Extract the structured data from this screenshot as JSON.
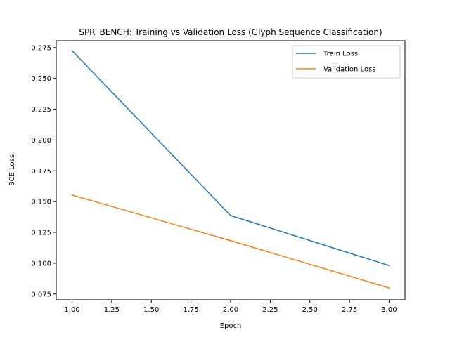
{
  "chart_data": {
    "type": "line",
    "title": "SPR_BENCH: Training vs Validation Loss (Glyph Sequence Classification)",
    "xlabel": "Epoch",
    "ylabel": "BCE Loss",
    "x": [
      1.0,
      2.0,
      3.0
    ],
    "series": [
      {
        "name": "Train Loss",
        "color": "#1f77b4",
        "values": [
          0.2725,
          0.1387,
          0.0981
        ]
      },
      {
        "name": "Validation Loss",
        "color": "#ff7f0e",
        "values": [
          0.1553,
          0.1183,
          0.0799
        ]
      }
    ],
    "xlim": [
      0.9,
      3.1
    ],
    "ylim": [
      0.0703,
      0.2806
    ],
    "xticks": [
      1.0,
      1.25,
      1.5,
      1.75,
      2.0,
      2.25,
      2.5,
      2.75,
      3.0
    ],
    "xtick_labels": [
      "1.00",
      "1.25",
      "1.50",
      "1.75",
      "2.00",
      "2.25",
      "2.50",
      "2.75",
      "3.00"
    ],
    "yticks": [
      0.075,
      0.1,
      0.125,
      0.15,
      0.175,
      0.2,
      0.225,
      0.25,
      0.275
    ],
    "ytick_labels": [
      "0.075",
      "0.100",
      "0.125",
      "0.150",
      "0.175",
      "0.200",
      "0.225",
      "0.250",
      "0.275"
    ],
    "grid": false,
    "legend_position": "top-right"
  }
}
